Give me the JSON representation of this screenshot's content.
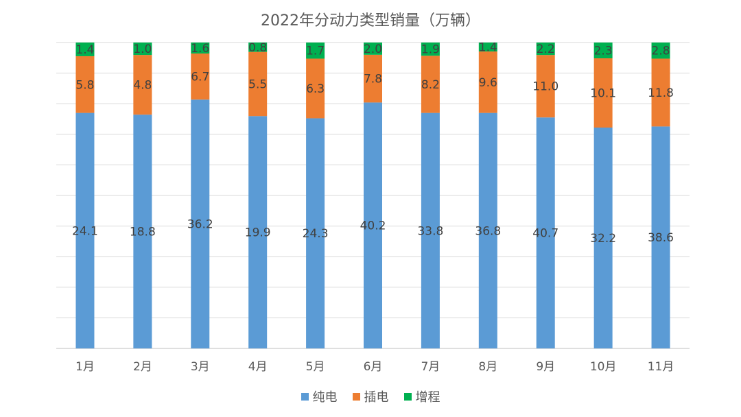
{
  "chart_data": {
    "type": "bar",
    "stacked": true,
    "title": "2022年分动力类型销量（万辆）",
    "categories": [
      "1月",
      "2月",
      "3月",
      "4月",
      "5月",
      "6月",
      "7月",
      "8月",
      "9月",
      "10月",
      "11月"
    ],
    "series": [
      {
        "name": "纯电",
        "color": "#5B9BD5",
        "values": [
          24.1,
          18.8,
          36.2,
          19.9,
          24.3,
          40.2,
          33.8,
          36.8,
          40.7,
          32.2,
          38.6
        ]
      },
      {
        "name": "插电",
        "color": "#ED7D31",
        "values": [
          5.8,
          4.8,
          6.7,
          5.5,
          6.3,
          7.8,
          8.2,
          9.6,
          11.0,
          10.1,
          11.8
        ]
      },
      {
        "name": "增程",
        "color": "#00B050",
        "values": [
          1.4,
          1.0,
          1.6,
          0.8,
          1.7,
          2.0,
          1.9,
          1.4,
          2.2,
          2.3,
          2.8
        ]
      }
    ],
    "normalized": true,
    "grid": true,
    "legend_position": "bottom"
  }
}
